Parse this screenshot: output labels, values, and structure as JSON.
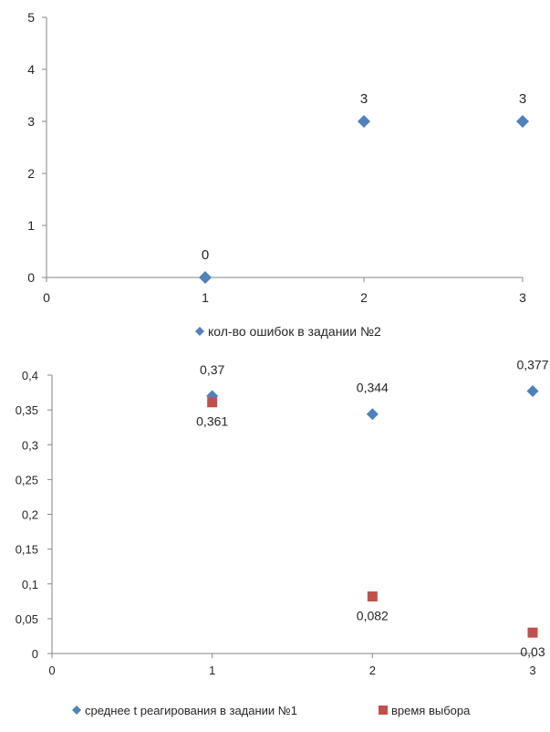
{
  "chart_data": [
    {
      "type": "scatter",
      "xlim": [
        0,
        3
      ],
      "ylim": [
        0,
        5
      ],
      "x_ticks": [
        "0",
        "1",
        "2",
        "3"
      ],
      "y_ticks": [
        "0",
        "1",
        "2",
        "3",
        "4",
        "5"
      ],
      "grid": false,
      "legend_position": "bottom",
      "series": [
        {
          "name": "кол-во ошибок в задании №2",
          "marker": "diamond",
          "color": "#4F81BD",
          "points": [
            {
              "x": 1,
              "y": 0,
              "label": "0"
            },
            {
              "x": 2,
              "y": 3,
              "label": "3"
            },
            {
              "x": 3,
              "y": 3,
              "label": "3"
            }
          ]
        }
      ]
    },
    {
      "type": "scatter",
      "xlim": [
        0,
        3
      ],
      "ylim": [
        0,
        0.4
      ],
      "x_ticks": [
        "0",
        "1",
        "2",
        "3"
      ],
      "y_ticks": [
        "0",
        "0,05",
        "0,1",
        "0,15",
        "0,2",
        "0,25",
        "0,3",
        "0,35",
        "0,4"
      ],
      "grid": false,
      "legend_position": "bottom",
      "series": [
        {
          "name": "среднее t реагирования в задании №1",
          "marker": "diamond",
          "color": "#4F81BD",
          "points": [
            {
              "x": 1,
              "y": 0.37,
              "label": "0,37"
            },
            {
              "x": 2,
              "y": 0.344,
              "label": "0,344"
            },
            {
              "x": 3,
              "y": 0.377,
              "label": "0,377"
            }
          ]
        },
        {
          "name": "время выбора",
          "marker": "square",
          "color": "#C0504D",
          "points": [
            {
              "x": 1,
              "y": 0.361,
              "label": "0,361"
            },
            {
              "x": 2,
              "y": 0.082,
              "label": "0,082"
            },
            {
              "x": 3,
              "y": 0.03,
              "label": "0,03"
            }
          ]
        }
      ]
    }
  ]
}
